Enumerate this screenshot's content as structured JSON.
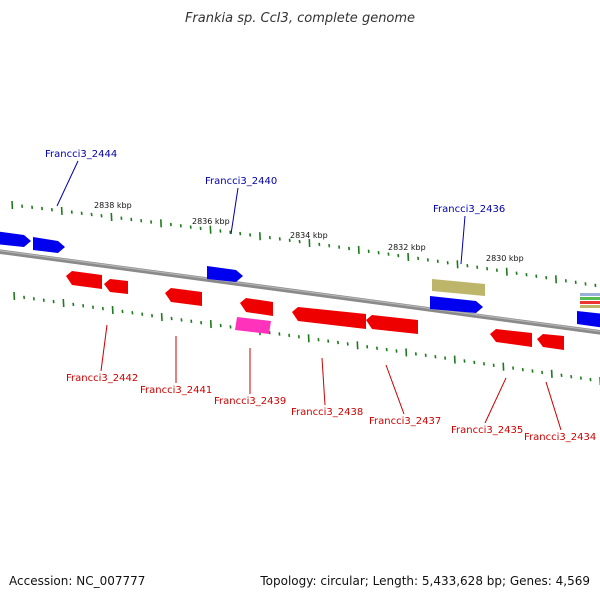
{
  "title": "Frankia sp. CcI3, complete genome",
  "footer": {
    "accession": "Accession: NC_007777",
    "summary": "Topology: circular; Length: 5,433,628 bp; Genes: 4,569"
  },
  "colors": {
    "forward_gene": "#0000ee",
    "reverse_gene": "#ee0000",
    "forward_label": "#0000aa",
    "reverse_label": "#cc0000",
    "tick": "#1e7a1e",
    "backbone": "#8a8a8a",
    "pseudo_gene": "#bdb66a",
    "rna_gene": "#ff33bb"
  },
  "scale_labels": [
    "2838 kbp",
    "2836 kbp",
    "2834 kbp",
    "2832 kbp",
    "2830 kbp"
  ],
  "forward_genes": [
    {
      "name": "Francci3_2444",
      "labeled": true
    },
    {
      "name": "Francci3_2440",
      "labeled": true
    },
    {
      "name": "Francci3_2436",
      "labeled": true
    }
  ],
  "reverse_genes": [
    {
      "name": "Francci3_2442"
    },
    {
      "name": "Francci3_2441"
    },
    {
      "name": "Francci3_2439"
    },
    {
      "name": "Francci3_2438"
    },
    {
      "name": "Francci3_2437"
    },
    {
      "name": "Francci3_2435"
    },
    {
      "name": "Francci3_2434"
    }
  ]
}
